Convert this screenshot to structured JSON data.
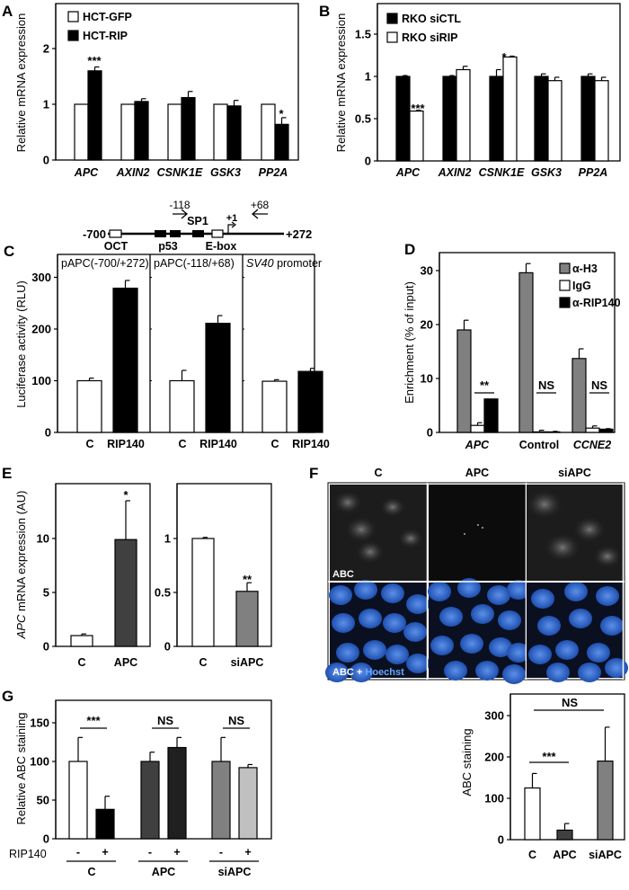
{
  "panels": {
    "A": {
      "label": "A"
    },
    "B": {
      "label": "B"
    },
    "C": {
      "label": "C"
    },
    "D": {
      "label": "D"
    },
    "E": {
      "label": "E"
    },
    "F": {
      "label": "F"
    },
    "G": {
      "label": "G"
    }
  },
  "promoter_diagram": {
    "start": "-700",
    "end": "+272",
    "primer_fwd": "-118",
    "primer_rev": "+68",
    "tss": "+1",
    "elements": [
      "OCT",
      "p53",
      "SP1",
      "E-box"
    ]
  },
  "microscopy": {
    "columns": [
      "C",
      "APC",
      "siAPC"
    ],
    "row1_label": "ABC",
    "row2_label_a": "ABC + ",
    "row2_label_b": "Hoechst"
  },
  "chart_data": [
    {
      "id": "A",
      "type": "bar",
      "title": "",
      "xlabel": "",
      "ylabel": "Relative mRNA expression",
      "ylim": [
        0,
        2.8
      ],
      "yticks": [
        "0",
        "1",
        "2"
      ],
      "categories": [
        "APC",
        "AXIN2",
        "CSNK1E",
        "GSK3",
        "PP2A"
      ],
      "legend": [
        "HCT-GFP",
        "HCT-RIP"
      ],
      "legend_position": "upper-left",
      "series": [
        {
          "name": "HCT-GFP",
          "color": "#ffffff",
          "values": [
            1.0,
            1.0,
            1.0,
            1.0,
            1.0
          ],
          "errors": [
            0,
            0,
            0,
            0,
            0
          ]
        },
        {
          "name": "HCT-RIP",
          "color": "#000000",
          "values": [
            1.6,
            1.05,
            1.12,
            0.97,
            0.64
          ],
          "errors": [
            0.07,
            0.05,
            0.11,
            0.1,
            0.12
          ]
        }
      ],
      "annotations": [
        {
          "category": "APC",
          "text": "***"
        },
        {
          "category": "PP2A",
          "text": "*"
        }
      ]
    },
    {
      "id": "B",
      "type": "bar",
      "title": "",
      "xlabel": "",
      "ylabel": "Relative mRNA expression",
      "ylim": [
        0,
        1.88
      ],
      "yticks": [
        "0",
        "0.5",
        "1",
        "1.5"
      ],
      "categories": [
        "APC",
        "AXIN2",
        "CSNK1E",
        "GSK3",
        "PP2A"
      ],
      "legend": [
        "RKO siCTL",
        "RKO siRIP"
      ],
      "legend_position": "upper-left",
      "series": [
        {
          "name": "RKO siCTL",
          "color": "#000000",
          "values": [
            1.0,
            1.0,
            1.0,
            1.0,
            1.0
          ],
          "errors": [
            0.01,
            0.01,
            0.08,
            0.03,
            0.03
          ]
        },
        {
          "name": "RKO siRIP",
          "color": "#ffffff",
          "values": [
            0.59,
            1.08,
            1.23,
            0.95,
            0.95
          ],
          "errors": [
            0.01,
            0.04,
            0.01,
            0.04,
            0.04
          ]
        }
      ],
      "annotations": [
        {
          "category": "APC",
          "text": "***"
        },
        {
          "category": "CSNK1E",
          "text": "*"
        }
      ]
    },
    {
      "id": "C",
      "type": "bar",
      "title": "",
      "xlabel": "",
      "ylabel": "Luciferase activity (RLU)",
      "ylim": [
        0,
        335
      ],
      "yticks": [
        "0",
        "100",
        "200",
        "300"
      ],
      "subpanels": [
        {
          "title": "pAPC(-700/+272)",
          "title_italic": false,
          "categories": [
            "C",
            "RIP140"
          ],
          "values": [
            100,
            279
          ],
          "errors": [
            5,
            15
          ],
          "colors": [
            "#ffffff",
            "#000000"
          ]
        },
        {
          "title": "pAPC(-118/+68)",
          "title_italic": false,
          "categories": [
            "C",
            "RIP140"
          ],
          "values": [
            100,
            211
          ],
          "errors": [
            20,
            15
          ],
          "colors": [
            "#ffffff",
            "#000000"
          ]
        },
        {
          "title_italic_part": "SV40",
          "title": " promoter",
          "categories": [
            "C",
            "RIP140"
          ],
          "values": [
            99,
            118
          ],
          "errors": [
            3,
            6
          ],
          "colors": [
            "#ffffff",
            "#000000"
          ]
        }
      ]
    },
    {
      "id": "D",
      "type": "bar",
      "title": "",
      "xlabel": "",
      "ylabel": "Enrichment (% of input)",
      "ylim": [
        0,
        33
      ],
      "yticks": [
        "0",
        "10",
        "20",
        "30"
      ],
      "categories": [
        "APC",
        "Control",
        "CCNE2"
      ],
      "category_italic": [
        true,
        false,
        true
      ],
      "legend": [
        "α-H3",
        "IgG",
        "α-RIP140"
      ],
      "legend_position": "upper-right",
      "series": [
        {
          "name": "α-H3",
          "color": "#808080",
          "values": [
            19.0,
            29.6,
            13.7
          ],
          "errors": [
            1.8,
            1.7,
            1.8
          ]
        },
        {
          "name": "IgG",
          "color": "#ffffff",
          "values": [
            1.3,
            0.1,
            0.8
          ],
          "errors": [
            0.5,
            0.3,
            0.4
          ]
        },
        {
          "name": "α-RIP140",
          "color": "#000000",
          "values": [
            6.2,
            0.1,
            0.6
          ],
          "errors": [
            0,
            0.1,
            0.1
          ]
        }
      ],
      "annotations": [
        {
          "category": "APC",
          "text": "**"
        },
        {
          "category": "Control",
          "text": "NS"
        },
        {
          "category": "CCNE2",
          "text": "NS"
        }
      ]
    },
    {
      "id": "E-left",
      "type": "bar",
      "ylabel_italic": "APC",
      "ylabel": " mRNA  expression (AU)",
      "ylim": [
        0,
        15
      ],
      "yticks": [
        "0",
        "5",
        "10"
      ],
      "categories": [
        "C",
        "APC"
      ],
      "values": [
        1.0,
        9.9
      ],
      "errors": [
        0.15,
        3.6
      ],
      "colors": [
        "#ffffff",
        "#404040"
      ],
      "annotations": [
        {
          "category": "APC",
          "text": "*"
        }
      ]
    },
    {
      "id": "E-right",
      "type": "bar",
      "ylabel": "",
      "ylim": [
        0,
        1.5
      ],
      "yticks": [
        "0",
        "0.5",
        "1"
      ],
      "categories": [
        "C",
        "siAPC"
      ],
      "values": [
        1.0,
        0.51
      ],
      "errors": [
        0.01,
        0.08
      ],
      "colors": [
        "#ffffff",
        "#808080"
      ],
      "annotations": [
        {
          "category": "siAPC",
          "text": "**"
        }
      ]
    },
    {
      "id": "G",
      "type": "bar",
      "ylabel": "Relative ABC staining",
      "ylim": [
        0,
        178
      ],
      "yticks": [
        "0",
        "50",
        "100",
        "150"
      ],
      "row_label": "RIP140",
      "groups": [
        {
          "name": "C",
          "signs": [
            "-",
            "+"
          ],
          "values": [
            100,
            38
          ],
          "errors": [
            31,
            17
          ],
          "colors": [
            "#ffffff",
            "#000000"
          ],
          "sig": "***"
        },
        {
          "name": "APC",
          "signs": [
            "-",
            "+"
          ],
          "values": [
            100,
            118
          ],
          "errors": [
            12,
            13
          ],
          "colors": [
            "#404040",
            "#202020"
          ],
          "sig": "NS"
        },
        {
          "name": "siAPC",
          "signs": [
            "-",
            "+"
          ],
          "values": [
            100,
            92
          ],
          "errors": [
            31,
            4
          ],
          "colors": [
            "#808080",
            "#c0c0c0"
          ],
          "sig": "NS"
        }
      ]
    },
    {
      "id": "F-quant",
      "type": "bar",
      "ylabel": "ABC staining",
      "ylim": [
        0,
        335
      ],
      "yticks": [
        "0",
        "100",
        "200",
        "300"
      ],
      "categories": [
        "C",
        "APC",
        "siAPC"
      ],
      "values": [
        125,
        23,
        190
      ],
      "errors": [
        35,
        16,
        82
      ],
      "colors": [
        "#ffffff",
        "#404040",
        "#808080"
      ],
      "annotations": [
        {
          "between": [
            "C",
            "APC"
          ],
          "text": "***"
        },
        {
          "between": [
            "C",
            "siAPC"
          ],
          "text": "NS"
        }
      ]
    }
  ]
}
